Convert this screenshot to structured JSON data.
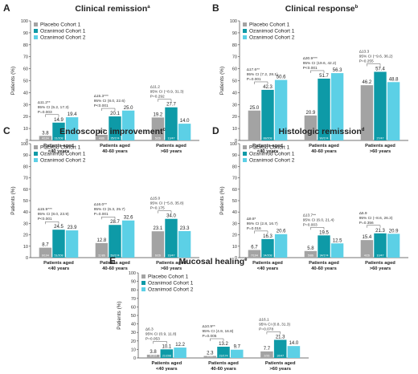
{
  "colors": {
    "placebo": "#a3a3a3",
    "oza1": "#0e9aa7",
    "oza2": "#5cd0e6"
  },
  "panels": [
    {
      "label": "A",
      "title": "Clinical remission",
      "title_sup": "a",
      "ylabel": "Patients (%)",
      "ylim": [
        0,
        100
      ],
      "yticks": [
        0,
        10,
        20,
        30,
        40,
        50,
        60,
        70,
        80,
        90,
        100
      ],
      "legend": [
        "Placebo Cohort 1",
        "Ozanimod Cohort 1",
        "Ozanimod Cohort 2"
      ],
      "categories": [
        [
          "Patients aged",
          "<40 years"
        ],
        [
          "Patients aged",
          "40-60 years"
        ],
        [
          "Patients aged",
          ">60 years"
        ]
      ],
      "series": [
        {
          "values": [
            3.8,
            4.7,
            19.2
          ],
          "n_labels": [
            "4/104",
            "4/86",
            "5/26"
          ]
        },
        {
          "values": [
            14.9,
            20.1,
            27.7
          ],
          "n_labels": [
            "31/208",
            "35/174",
            "13/47"
          ]
        },
        {
          "values": [
            19.4,
            25.0,
            14.0
          ],
          "n_labels": [
            "",
            "",
            ""
          ]
        }
      ],
      "stats": [
        [
          "Δ11.2**",
          "95% CI (5.2, 17.3)",
          "P=0.003"
        ],
        [
          "Δ15.3***",
          "95% CI (8.0, 22.6)",
          "P<0.001"
        ],
        [
          "Δ11.2",
          "95% CI (−8.9, 31.3)",
          "P=0.292"
        ]
      ]
    },
    {
      "label": "B",
      "title": "Clinical response",
      "title_sup": "b",
      "ylabel": "Patients (%)",
      "ylim": [
        0,
        100
      ],
      "yticks": [
        0,
        10,
        20,
        30,
        40,
        50,
        60,
        70,
        80,
        90,
        100
      ],
      "legend": [
        "Placebo Cohort 1",
        "Ozanimod Cohort 1",
        "Ozanimod Cohort 2"
      ],
      "categories": [
        [
          "Patients aged",
          "<40 years"
        ],
        [
          "Patients aged",
          "40-60 years"
        ],
        [
          "Patients aged",
          ">60 years"
        ]
      ],
      "series": [
        {
          "values": [
            25.0,
            20.9,
            46.2
          ],
          "n_labels": [
            "",
            "",
            ""
          ]
        },
        {
          "values": [
            42.3,
            51.7,
            57.4
          ],
          "n_labels": [
            "88/208",
            "90/174",
            "27/47"
          ]
        },
        {
          "values": [
            50.6,
            56.3,
            48.8
          ],
          "n_labels": [
            "",
            "",
            ""
          ]
        }
      ],
      "stats": [
        [
          "Δ17.6**",
          "95% CI (7.2, 28.1)",
          "P=0.001"
        ],
        [
          "Δ30.9***",
          "95% CI (19.6, 42.2)",
          "P<0.001"
        ],
        [
          "Δ13.3",
          "95% CI (−9.6, 36.2)",
          "P=0.255"
        ]
      ]
    },
    {
      "label": "C",
      "title": "Endoscopic improvement",
      "title_sup": "c",
      "ylabel": "Patients (%)",
      "ylim": [
        0,
        100
      ],
      "yticks": [
        0,
        10,
        20,
        30,
        40,
        50,
        60,
        70,
        80,
        90,
        100
      ],
      "legend": [
        "Placebo Cohort 1",
        "Ozanimod Cohort 1",
        "Ozanimod Cohort 2"
      ],
      "categories": [
        [
          "Patients aged",
          "<40 years"
        ],
        [
          "Patients aged",
          "40-60 years"
        ],
        [
          "Patients aged",
          ">60 years"
        ]
      ],
      "series": [
        {
          "values": [
            8.7,
            12.8,
            23.1
          ],
          "n_labels": [
            "9/104",
            "11/86",
            "6/26"
          ]
        },
        {
          "values": [
            24.5,
            28.7,
            34.0
          ],
          "n_labels": [
            "51/208",
            "50/174",
            "16/47"
          ]
        },
        {
          "values": [
            23.9,
            32.6,
            23.3
          ],
          "n_labels": [
            "",
            "",
            ""
          ]
        }
      ],
      "stats": [
        [
          "Δ15.9***",
          "95% CI (8.0, 23.9)",
          "P<0.001"
        ],
        [
          "Δ16.0**",
          "95% CI (6.3, 25.7)",
          "P=0.001"
        ],
        [
          "Δ15.0",
          "95% CI (−5.8, 35.8)",
          "P=0.175"
        ]
      ]
    },
    {
      "label": "D",
      "title": "Histologic remission",
      "title_sup": "d",
      "ylabel": "Patients (%)",
      "ylim": [
        0,
        100
      ],
      "yticks": [
        0,
        10,
        20,
        30,
        40,
        50,
        60,
        70,
        80,
        90,
        100
      ],
      "legend": [
        "Placebo Cohort 1",
        "Ozanimod Cohort 1",
        "Ozanimod Cohort 2"
      ],
      "categories": [
        [
          "Patients aged",
          "<40 years"
        ],
        [
          "Patients aged",
          "40-60 years"
        ],
        [
          "Patients aged",
          ">60 years"
        ]
      ],
      "series": [
        {
          "values": [
            6.7,
            5.8,
            15.4
          ],
          "n_labels": [
            "7/104",
            "5/86",
            "4/26"
          ]
        },
        {
          "values": [
            16.3,
            19.5,
            21.3
          ],
          "n_labels": [
            "34/208",
            "34/174",
            "10/47"
          ]
        },
        {
          "values": [
            20.6,
            12.5,
            20.9
          ],
          "n_labels": [
            "",
            "",
            ""
          ]
        }
      ],
      "stats": [
        [
          "Δ9.8*",
          "95% CI (2.8, 16.7)",
          "P=0.016"
        ],
        [
          "Δ13.7**",
          "95% CI (6.0, 21.4)",
          "P=0.003"
        ],
        [
          "Δ5.9",
          "95% CI (−8.6, 26.3)",
          "P=0.356"
        ]
      ]
    },
    {
      "label": "E",
      "title": "Mucosal healing",
      "title_sup": "e",
      "ylabel": "Patients (%)",
      "ylim": [
        0,
        100
      ],
      "yticks": [
        0,
        10,
        20,
        30,
        40,
        50,
        60,
        70,
        80,
        90,
        100
      ],
      "legend": [
        "Placebo Cohort 1",
        "Ozanimod Cohort 1",
        "Ozanimod Cohort 2"
      ],
      "categories": [
        [
          "Patients aged",
          "<40 years"
        ],
        [
          "Patients aged",
          "40-60 years"
        ],
        [
          "Patients aged",
          ">60 years"
        ]
      ],
      "series": [
        {
          "values": [
            3.8,
            2.3,
            7.7
          ],
          "n_labels": [
            "4/104",
            "2/86",
            "2/26"
          ]
        },
        {
          "values": [
            10.1,
            13.2,
            21.3
          ],
          "n_labels": [
            "21/208",
            "23/174",
            "10/47"
          ]
        },
        {
          "values": [
            12.2,
            9.7,
            14.0
          ],
          "n_labels": [
            "",
            "",
            ""
          ]
        }
      ],
      "stats": [
        [
          "Δ6.3",
          "95% CI (0.9, 11.8)",
          "P=0.053"
        ],
        [
          "Δ10.9**",
          "95% CI (4.9, 16.8)",
          "P=0.005"
        ],
        [
          "Δ16.1",
          "95% CI (0.8, 31.3)",
          "P=0.078"
        ]
      ]
    }
  ],
  "chart_data": [
    {
      "type": "bar",
      "title": "Clinical remission",
      "ylabel": "Patients (%)",
      "ylim": [
        0,
        100
      ],
      "categories": [
        "Patients aged <40 years",
        "Patients aged 40-60 years",
        "Patients aged >60 years"
      ],
      "series": [
        {
          "name": "Placebo Cohort 1",
          "values": [
            3.8,
            4.7,
            19.2
          ]
        },
        {
          "name": "Ozanimod Cohort 1",
          "values": [
            14.9,
            20.1,
            27.7
          ]
        },
        {
          "name": "Ozanimod Cohort 2",
          "values": [
            19.4,
            25.0,
            14.0
          ]
        }
      ],
      "legend": "top-left"
    },
    {
      "type": "bar",
      "title": "Clinical response",
      "ylabel": "Patients (%)",
      "ylim": [
        0,
        100
      ],
      "categories": [
        "Patients aged <40 years",
        "Patients aged 40-60 years",
        "Patients aged >60 years"
      ],
      "series": [
        {
          "name": "Placebo Cohort 1",
          "values": [
            25.0,
            20.9,
            46.2
          ]
        },
        {
          "name": "Ozanimod Cohort 1",
          "values": [
            42.3,
            51.7,
            57.4
          ]
        },
        {
          "name": "Ozanimod Cohort 2",
          "values": [
            50.6,
            56.3,
            48.8
          ]
        }
      ],
      "legend": "top-left"
    },
    {
      "type": "bar",
      "title": "Endoscopic improvement",
      "ylabel": "Patients (%)",
      "ylim": [
        0,
        100
      ],
      "categories": [
        "Patients aged <40 years",
        "Patients aged 40-60 years",
        "Patients aged >60 years"
      ],
      "series": [
        {
          "name": "Placebo Cohort 1",
          "values": [
            8.7,
            12.8,
            23.1
          ]
        },
        {
          "name": "Ozanimod Cohort 1",
          "values": [
            24.5,
            28.7,
            34.0
          ]
        },
        {
          "name": "Ozanimod Cohort 2",
          "values": [
            23.9,
            32.6,
            23.3
          ]
        }
      ],
      "legend": "top-left"
    },
    {
      "type": "bar",
      "title": "Histologic remission",
      "ylabel": "Patients (%)",
      "ylim": [
        0,
        100
      ],
      "categories": [
        "Patients aged <40 years",
        "Patients aged 40-60 years",
        "Patients aged >60 years"
      ],
      "series": [
        {
          "name": "Placebo Cohort 1",
          "values": [
            6.7,
            5.8,
            15.4
          ]
        },
        {
          "name": "Ozanimod Cohort 1",
          "values": [
            16.3,
            19.5,
            21.3
          ]
        },
        {
          "name": "Ozanimod Cohort 2",
          "values": [
            20.6,
            12.5,
            20.9
          ]
        }
      ],
      "legend": "top-left"
    },
    {
      "type": "bar",
      "title": "Mucosal healing",
      "ylabel": "Patients (%)",
      "ylim": [
        0,
        100
      ],
      "categories": [
        "Patients aged <40 years",
        "Patients aged 40-60 years",
        "Patients aged >60 years"
      ],
      "series": [
        {
          "name": "Placebo Cohort 1",
          "values": [
            3.8,
            2.3,
            7.7
          ]
        },
        {
          "name": "Ozanimod Cohort 1",
          "values": [
            10.1,
            13.2,
            21.3
          ]
        },
        {
          "name": "Ozanimod Cohort 2",
          "values": [
            12.2,
            9.7,
            14.0
          ]
        }
      ],
      "legend": "top-left"
    }
  ]
}
